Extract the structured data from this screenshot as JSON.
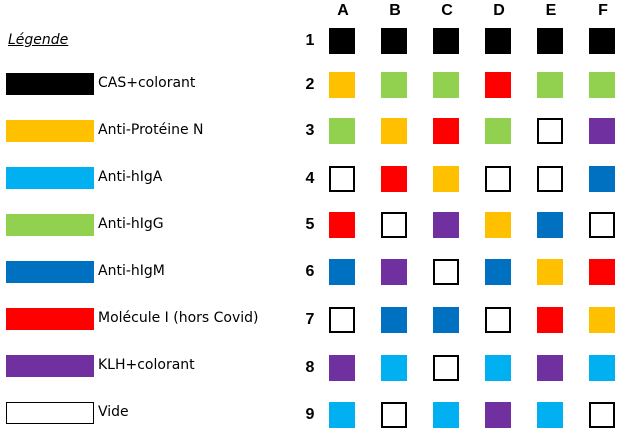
{
  "legend": {
    "title": "Légende",
    "items": [
      {
        "key": "cas",
        "label": "CAS+colorant",
        "color": "#000000"
      },
      {
        "key": "antiN",
        "label": "Anti-Protéine N",
        "color": "#FFC000"
      },
      {
        "key": "iga",
        "label": "Anti-hIgA",
        "color": "#00B0F0"
      },
      {
        "key": "igg",
        "label": "Anti-hIgG",
        "color": "#92D050"
      },
      {
        "key": "igm",
        "label": "Anti-hIgM",
        "color": "#0070C0"
      },
      {
        "key": "mol",
        "label": "Molécule I (hors Covid)",
        "color": "#FF0000"
      },
      {
        "key": "klh",
        "label": "KLH+colorant",
        "color": "#7030A0"
      },
      {
        "key": "vide",
        "label": "Vide",
        "color": "#FFFFFF"
      }
    ]
  },
  "grid": {
    "columns": [
      "A",
      "B",
      "C",
      "D",
      "E",
      "F"
    ],
    "rows": [
      "1",
      "2",
      "3",
      "4",
      "5",
      "6",
      "7",
      "8",
      "9"
    ],
    "cells": [
      [
        "cas",
        "cas",
        "cas",
        "cas",
        "cas",
        "cas"
      ],
      [
        "antiN",
        "igg",
        "igg",
        "mol",
        "igg",
        "igg"
      ],
      [
        "igg",
        "antiN",
        "mol",
        "igg",
        "vide",
        "klh"
      ],
      [
        "vide",
        "mol",
        "antiN",
        "vide",
        "vide",
        "igm"
      ],
      [
        "mol",
        "vide",
        "klh",
        "antiN",
        "igm",
        "vide"
      ],
      [
        "igm",
        "klh",
        "vide",
        "igm",
        "antiN",
        "mol"
      ],
      [
        "vide",
        "igm",
        "igm",
        "vide",
        "mol",
        "antiN"
      ],
      [
        "klh",
        "iga",
        "vide",
        "iga",
        "klh",
        "iga"
      ],
      [
        "iga",
        "vide",
        "iga",
        "klh",
        "iga",
        "vide"
      ]
    ]
  }
}
